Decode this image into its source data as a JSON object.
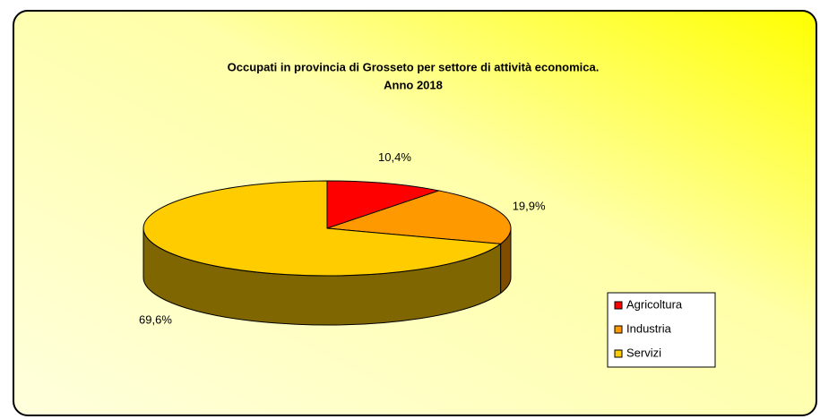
{
  "chart_data": {
    "type": "pie",
    "title": "Occupati in provincia di Grosseto per settore di attività economica.",
    "subtitle": "Anno 2018",
    "categories": [
      "Agricoltura",
      "Industria",
      "Servizi"
    ],
    "values": [
      10.4,
      19.9,
      69.6
    ],
    "value_labels": [
      "10,4%",
      "19,9%",
      "69,6%"
    ],
    "colors": [
      "#ff0000",
      "#ff9900",
      "#ffcc00"
    ],
    "legend": "right"
  }
}
